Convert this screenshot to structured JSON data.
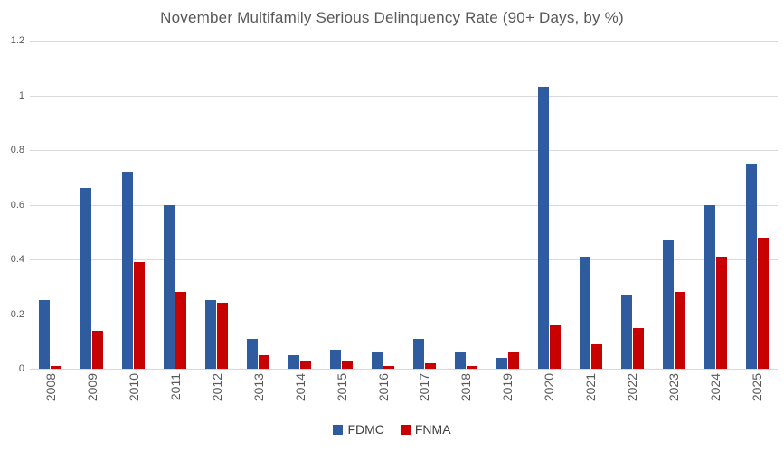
{
  "chart_data": {
    "type": "bar",
    "title": "November Multifamily Serious Delinquency Rate (90+ Days, by %)",
    "categories": [
      "2008",
      "2009",
      "2010",
      "2011",
      "2012",
      "2013",
      "2014",
      "2015",
      "2016",
      "2017",
      "2018",
      "2019",
      "2020",
      "2021",
      "2022",
      "2023",
      "2024",
      "2025"
    ],
    "series": [
      {
        "name": "FDMC",
        "color": "#2f5b9f",
        "values": [
          0.25,
          0.66,
          0.72,
          0.6,
          0.25,
          0.11,
          0.05,
          0.07,
          0.06,
          0.11,
          0.06,
          0.04,
          1.03,
          0.41,
          0.27,
          0.47,
          0.6,
          0.75
        ]
      },
      {
        "name": "FNMA",
        "color": "#c80000",
        "values": [
          0.01,
          0.14,
          0.39,
          0.28,
          0.24,
          0.05,
          0.03,
          0.03,
          0.01,
          0.02,
          0.01,
          0.06,
          0.16,
          0.09,
          0.15,
          0.28,
          0.41,
          0.48
        ]
      }
    ],
    "xlabel": "",
    "ylabel": "",
    "ylim": [
      0,
      1.2
    ],
    "yticks": [
      "0",
      "0.2",
      "0.4",
      "0.6",
      "0.8",
      "1",
      "1.2"
    ],
    "ytick_values": [
      0,
      0.2,
      0.4,
      0.6,
      0.8,
      1.0,
      1.2
    ],
    "grid": true,
    "legend_position": "bottom",
    "colors": {
      "gridline": "#d9d9d9",
      "title_text": "#595959",
      "axis_text": "#595959",
      "legend_text": "#404040",
      "background": "#ffffff"
    }
  }
}
